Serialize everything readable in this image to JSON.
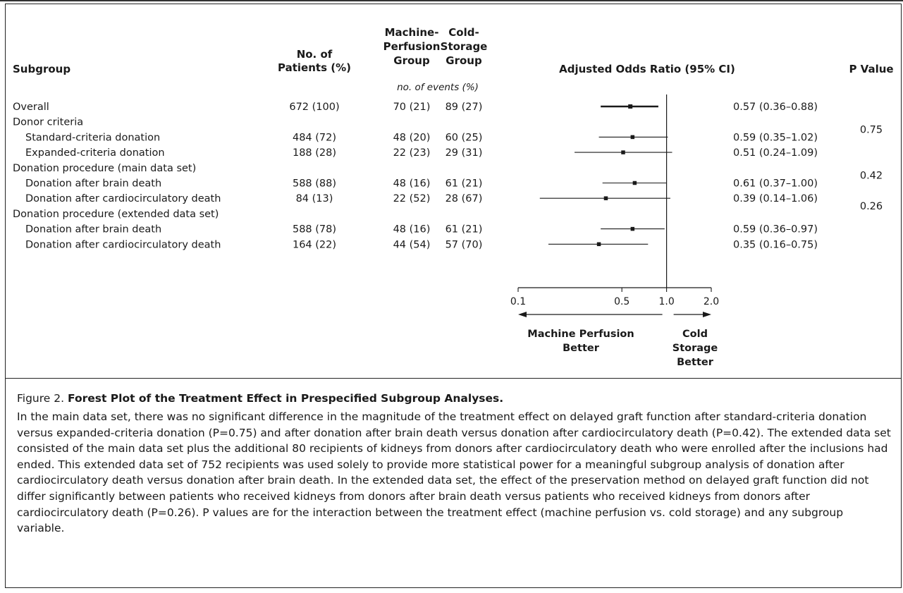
{
  "headers": {
    "subgroup": "Subgroup",
    "patients": [
      "No. of",
      "Patients (%)"
    ],
    "mp_group": [
      "Machine-",
      "Perfusion",
      "Group"
    ],
    "cs_group": [
      "Cold-",
      "Storage",
      "Group"
    ],
    "events_unit": "no. of events (%)",
    "odds": "Adjusted Odds Ratio (95% CI)",
    "pvalue": "P Value"
  },
  "rows": [
    {
      "label": "Overall",
      "indent": false,
      "patients": "672 (100)",
      "mp": "70 (21)",
      "cs": "89 (27)",
      "ci_text": "0.57 (0.36–0.88)"
    },
    {
      "label": "Donor criteria",
      "indent": false
    },
    {
      "label": "Standard-criteria donation",
      "indent": true,
      "patients": "484 (72)",
      "mp": "48 (20)",
      "cs": "60 (25)",
      "ci_text": "0.59 (0.35–1.02)"
    },
    {
      "label": "Expanded-criteria donation",
      "indent": true,
      "patients": "188 (28)",
      "mp": "22 (23)",
      "cs": "29 (31)",
      "ci_text": "0.51 (0.24–1.09)"
    },
    {
      "label": "Donation procedure (main data set)",
      "indent": false
    },
    {
      "label": "Donation after brain death",
      "indent": true,
      "patients": "588 (88)",
      "mp": "48 (16)",
      "cs": "61 (21)",
      "ci_text": "0.61 (0.37–1.00)"
    },
    {
      "label": "Donation after cardiocirculatory death",
      "indent": true,
      "patients": "84 (13)",
      "mp": "22 (52)",
      "cs": "28 (67)",
      "ci_text": "0.39 (0.14–1.06)"
    },
    {
      "label": "Donation procedure (extended data set)",
      "indent": false
    },
    {
      "label": "Donation after brain death",
      "indent": true,
      "patients": "588 (78)",
      "mp": "48 (16)",
      "cs": "61 (21)",
      "ci_text": "0.59 (0.36–0.97)"
    },
    {
      "label": "Donation after cardiocirculatory death",
      "indent": true,
      "patients": "164 (22)",
      "mp": "44 (54)",
      "cs": "57 (70)",
      "ci_text": "0.35 (0.16–0.75)"
    }
  ],
  "pvalues": [
    {
      "row": 2,
      "value": "0.75"
    },
    {
      "row": 5,
      "value": "0.42"
    },
    {
      "row": 7,
      "value": "0.26"
    }
  ],
  "chart_data": {
    "type": "forest",
    "title": "Adjusted Odds Ratio (95% CI)",
    "x_scale": "log",
    "xlim": [
      0.1,
      2.0
    ],
    "x_ticks": [
      0.1,
      0.5,
      1.0,
      2.0
    ],
    "x_tick_labels": [
      "0.1",
      "0.5",
      "1.0",
      "2.0"
    ],
    "reference_line": 1.0,
    "points": [
      {
        "row": 0,
        "or": 0.57,
        "lo": 0.36,
        "hi": 0.88
      },
      {
        "row": 2,
        "or": 0.59,
        "lo": 0.35,
        "hi": 1.02
      },
      {
        "row": 3,
        "or": 0.51,
        "lo": 0.24,
        "hi": 1.09
      },
      {
        "row": 5,
        "or": 0.61,
        "lo": 0.37,
        "hi": 1.0
      },
      {
        "row": 6,
        "or": 0.39,
        "lo": 0.14,
        "hi": 1.06
      },
      {
        "row": 8,
        "or": 0.59,
        "lo": 0.36,
        "hi": 0.97
      },
      {
        "row": 9,
        "or": 0.35,
        "lo": 0.16,
        "hi": 0.75
      }
    ],
    "favor_left": [
      "Machine Perfusion",
      "Better"
    ],
    "favor_right": [
      "Cold",
      "Storage",
      "Better"
    ]
  },
  "caption": {
    "label": "Figure 2.",
    "title": "Forest Plot of the Treatment Effect in Prespecified Subgroup Analyses.",
    "body": "In the main data set, there was no significant difference in the magnitude of the treatment effect on delayed graft function after standard-criteria donation versus expanded-criteria donation (P=0.75) and after donation after brain death versus donation after cardiocirculatory death (P=0.42). The extended data set consisted of the main data set plus the additional 80 recipients of kidneys from donors after cardiocirculatory death who were enrolled after the inclusions had ended. This extended data set of 752 recipients was used solely to provide more statistical power for a meaningful subgroup analysis of donation after cardiocirculatory death versus donation after brain death. In the extended data set, the effect of the preservation method on delayed graft function did not differ significantly between patients who received kidneys from donors after brain death versus patients who received kidneys from donors after cardiocirculatory death (P=0.26). P values are for the interaction between the treatment effect (machine perfusion vs. cold storage) and any subgroup variable."
  }
}
